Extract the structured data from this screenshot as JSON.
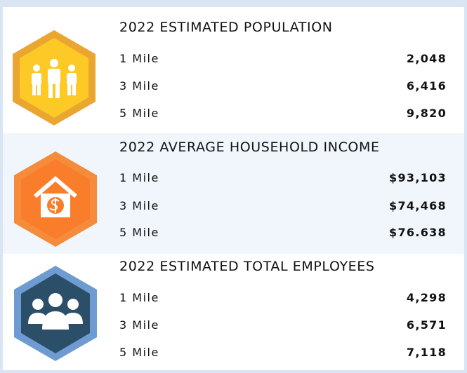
{
  "sections": [
    {
      "title": "2022 ESTIMATED POPULATION",
      "rows": [
        [
          "1 Mile",
          "2,048"
        ],
        [
          "3 Mile",
          "6,416"
        ],
        [
          "5 Mile",
          "9,820"
        ]
      ]
    },
    {
      "title": "2022 AVERAGE HOUSEHOLD INCOME",
      "rows": [
        [
          "1 Mile",
          "$93,103"
        ],
        [
          "3 Mile",
          "$74,468"
        ],
        [
          "5 Mile",
          "$76.638"
        ]
      ]
    },
    {
      "title": "2022 ESTIMATED TOTAL EMPLOYEES",
      "rows": [
        [
          "1 Mile",
          "4,298"
        ],
        [
          "3 Mile",
          "6,571"
        ],
        [
          "5 Mile",
          "7,118"
        ]
      ]
    }
  ]
}
